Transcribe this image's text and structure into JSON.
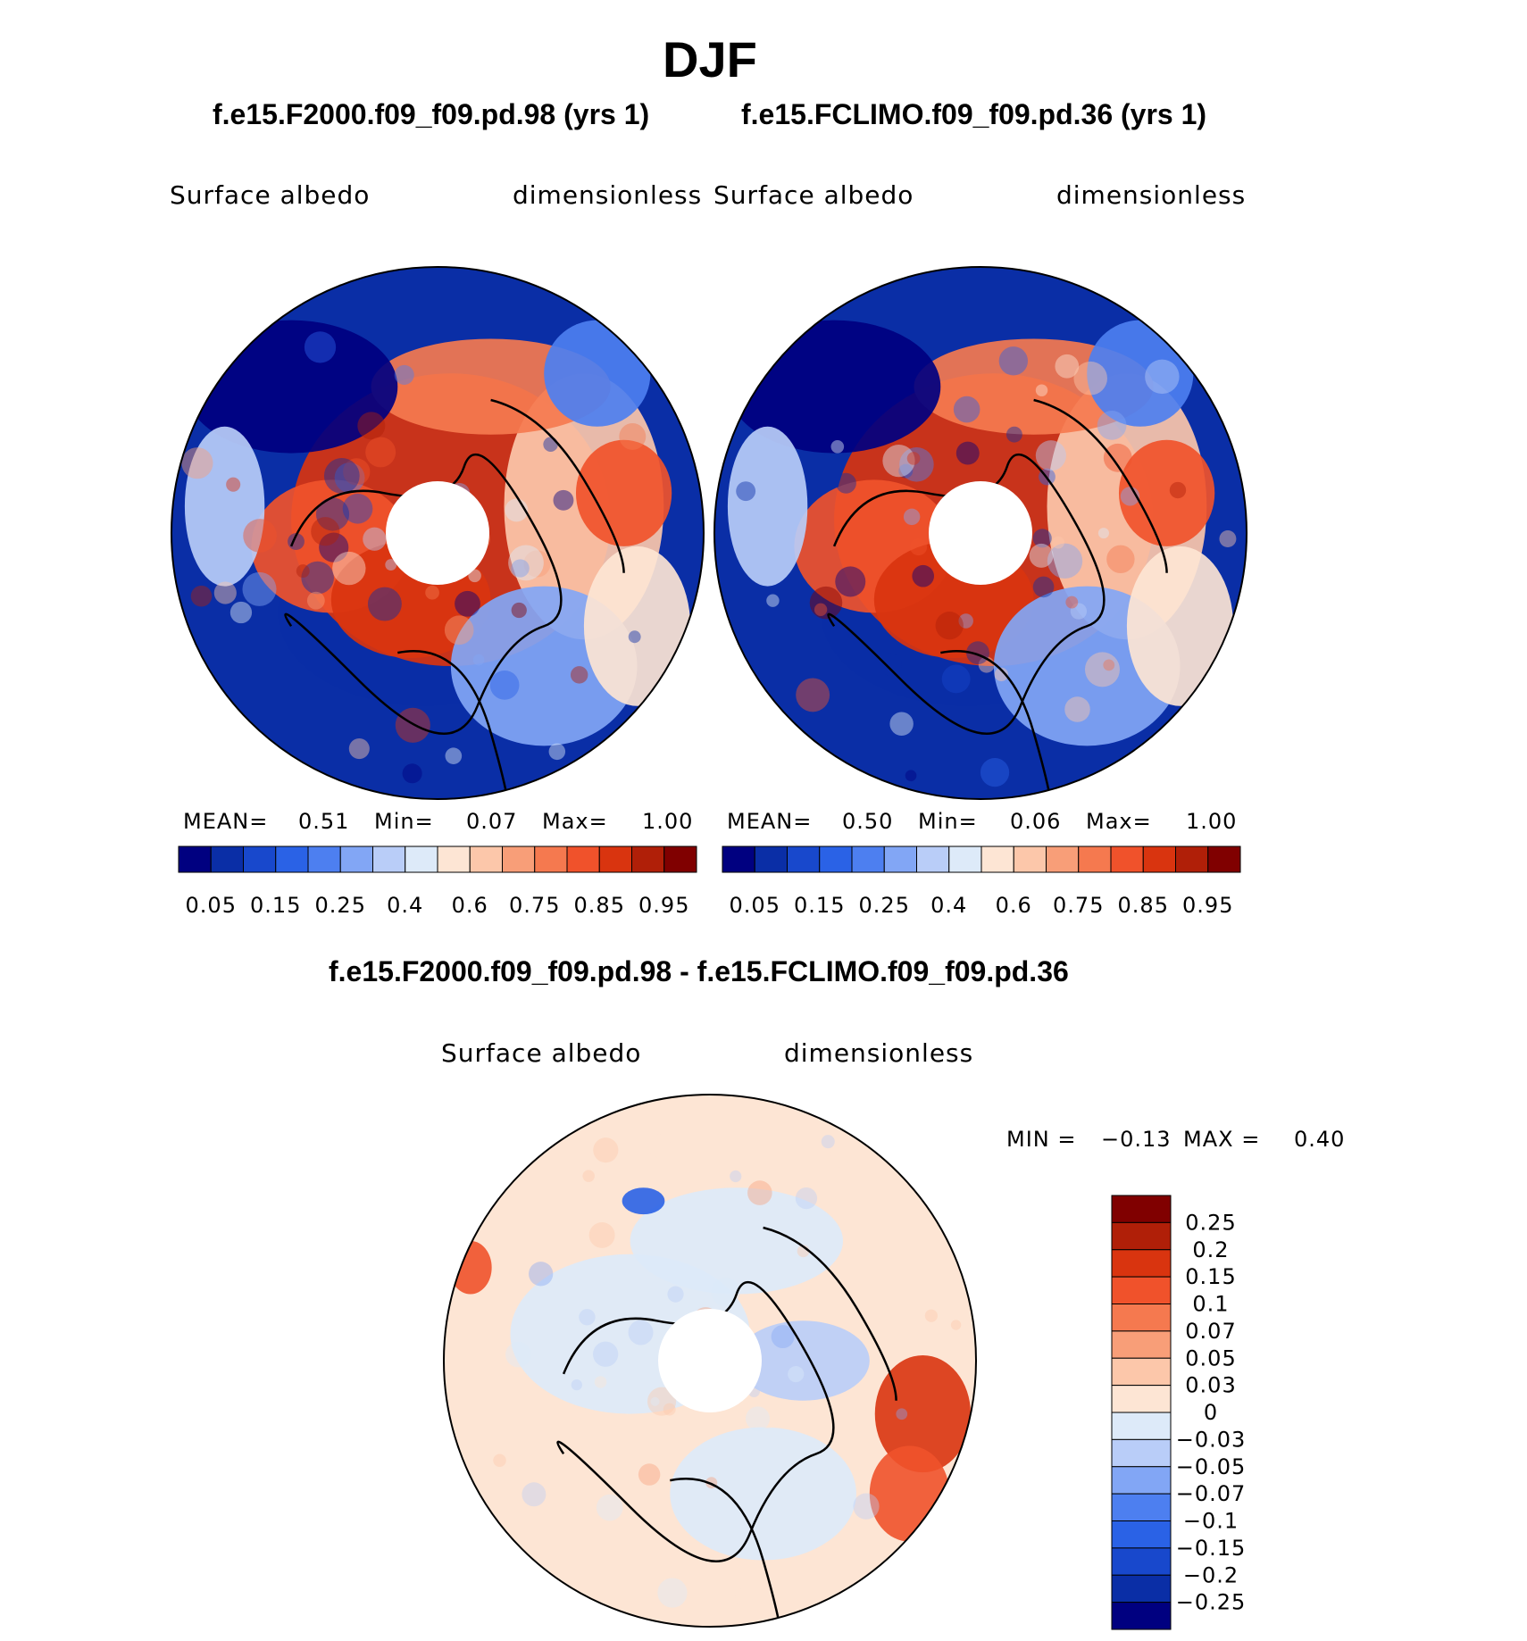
{
  "figure": {
    "title": "DJF",
    "panel_left": {
      "case_title": "f.e15.F2000.f09_f09.pd.98 (yrs 1)",
      "variable": "Surface albedo",
      "units": "dimensionless",
      "stats": {
        "mean_label": "MEAN=",
        "mean": "0.51",
        "min_label": "Min=",
        "min": "0.07",
        "max_label": "Max=",
        "max": "1.00"
      }
    },
    "panel_right": {
      "case_title": "f.e15.FCLIMO.f09_f09.pd.36 (yrs 1)",
      "variable": "Surface albedo",
      "units": "dimensionless",
      "stats": {
        "mean_label": "MEAN=",
        "mean": "0.50",
        "min_label": "Min=",
        "min": "0.06",
        "max_label": "Max=",
        "max": "1.00"
      }
    },
    "panel_diff": {
      "case_title": "f.e15.F2000.f09_f09.pd.98 - f.e15.FCLIMO.f09_f09.pd.36",
      "variable": "Surface albedo",
      "units": "dimensionless",
      "stats": {
        "min_label": "MIN =",
        "min": "−0.13",
        "max_label": "MAX =",
        "max": "0.40"
      }
    }
  },
  "chart_data": [
    {
      "type": "heatmap",
      "projection": "north-polar-stereographic",
      "title": "f.e15.F2000.f09_f09.pd.98 (yrs 1)",
      "variable": "Surface albedo",
      "units": "dimensionless",
      "mean": 0.51,
      "min": 0.07,
      "max": 1.0,
      "colorbar_labels": [
        "0.05",
        "0.15",
        "0.25",
        "0.4",
        "0.6",
        "0.75",
        "0.85",
        "0.95"
      ],
      "colorbar_colors": [
        "#000080",
        "#0a2ea6",
        "#1848cc",
        "#2a62e6",
        "#4d7ff0",
        "#82a6f5",
        "#b9cdf8",
        "#ddeaf9",
        "#fde5d4",
        "#fcc7aa",
        "#f89e78",
        "#f5794f",
        "#f0522b",
        "#d9340f",
        "#b01f08",
        "#800000"
      ],
      "legend": "bottom"
    },
    {
      "type": "heatmap",
      "projection": "north-polar-stereographic",
      "title": "f.e15.FCLIMO.f09_f09.pd.36 (yrs 1)",
      "variable": "Surface albedo",
      "units": "dimensionless",
      "mean": 0.5,
      "min": 0.06,
      "max": 1.0,
      "colorbar_labels": [
        "0.05",
        "0.15",
        "0.25",
        "0.4",
        "0.6",
        "0.75",
        "0.85",
        "0.95"
      ],
      "colorbar_colors": [
        "#000080",
        "#0a2ea6",
        "#1848cc",
        "#2a62e6",
        "#4d7ff0",
        "#82a6f5",
        "#b9cdf8",
        "#ddeaf9",
        "#fde5d4",
        "#fcc7aa",
        "#f89e78",
        "#f5794f",
        "#f0522b",
        "#d9340f",
        "#b01f08",
        "#800000"
      ],
      "legend": "bottom"
    },
    {
      "type": "heatmap",
      "projection": "north-polar-stereographic",
      "title": "f.e15.F2000.f09_f09.pd.98 - f.e15.FCLIMO.f09_f09.pd.36",
      "variable": "Surface albedo",
      "units": "dimensionless",
      "min": -0.13,
      "max": 0.4,
      "colorbar_labels": [
        "0.25",
        "0.2",
        "0.15",
        "0.1",
        "0.07",
        "0.05",
        "0.03",
        "0",
        "−0.03",
        "−0.05",
        "−0.07",
        "−0.1",
        "−0.15",
        "−0.2",
        "−0.25"
      ],
      "colorbar_colors": [
        "#800000",
        "#b01f08",
        "#d9340f",
        "#f0522b",
        "#f5794f",
        "#f89e78",
        "#fcc7aa",
        "#fde5d4",
        "#ddeaf9",
        "#b9cdf8",
        "#82a6f5",
        "#4d7ff0",
        "#2a62e6",
        "#1848cc",
        "#0a2ea6",
        "#000080"
      ],
      "legend": "right"
    }
  ]
}
